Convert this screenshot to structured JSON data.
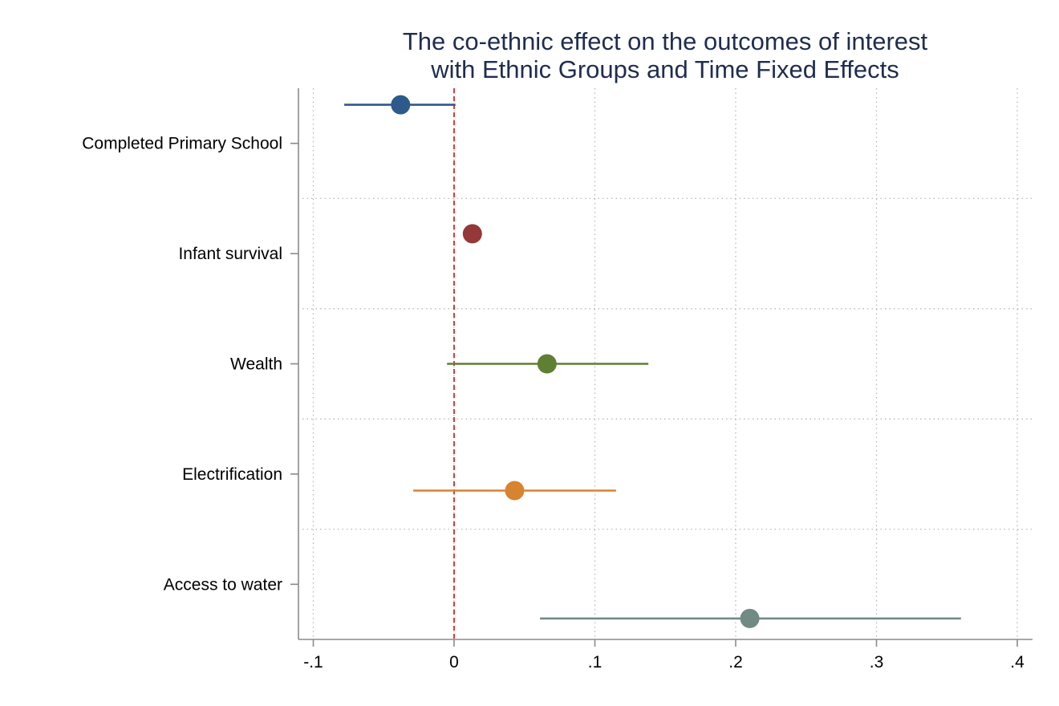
{
  "chart_data": {
    "type": "coefficient_plot",
    "title": [
      "The co-ethnic effect on the outcomes of interest",
      "with Ethnic Groups and Time Fixed Effects"
    ],
    "xlabel": "",
    "ylabel": "",
    "xlim": [
      -0.11,
      0.41
    ],
    "x_ticks": [
      -0.1,
      0,
      0.1,
      0.2,
      0.3,
      0.4
    ],
    "x_tick_labels": [
      "-.1",
      "0",
      ".1",
      ".2",
      ".3",
      ".4"
    ],
    "reference_line": {
      "x": 0,
      "color": "#d62728",
      "style": "dashed"
    },
    "grid": {
      "vertical": true,
      "horizontal": true,
      "style": "dotted"
    },
    "series": [
      {
        "category": "Completed Primary School",
        "estimate": -0.038,
        "ci_low": -0.078,
        "ci_high": 0.001,
        "color": "#2d5a8a",
        "offset": -0.35
      },
      {
        "category": "Infant survival",
        "estimate": 0.013,
        "ci_low": 0.013,
        "ci_high": 0.013,
        "color": "#943838",
        "offset": -0.18
      },
      {
        "category": "Wealth",
        "estimate": 0.066,
        "ci_low": -0.005,
        "ci_high": 0.138,
        "color": "#5f7f35",
        "offset": 0.0
      },
      {
        "category": "Electrification",
        "estimate": 0.043,
        "ci_low": -0.029,
        "ci_high": 0.115,
        "color": "#d8832f",
        "offset": 0.15
      },
      {
        "category": "Access to water",
        "estimate": 0.21,
        "ci_low": 0.061,
        "ci_high": 0.36,
        "color": "#718a84",
        "offset": 0.31
      }
    ]
  }
}
